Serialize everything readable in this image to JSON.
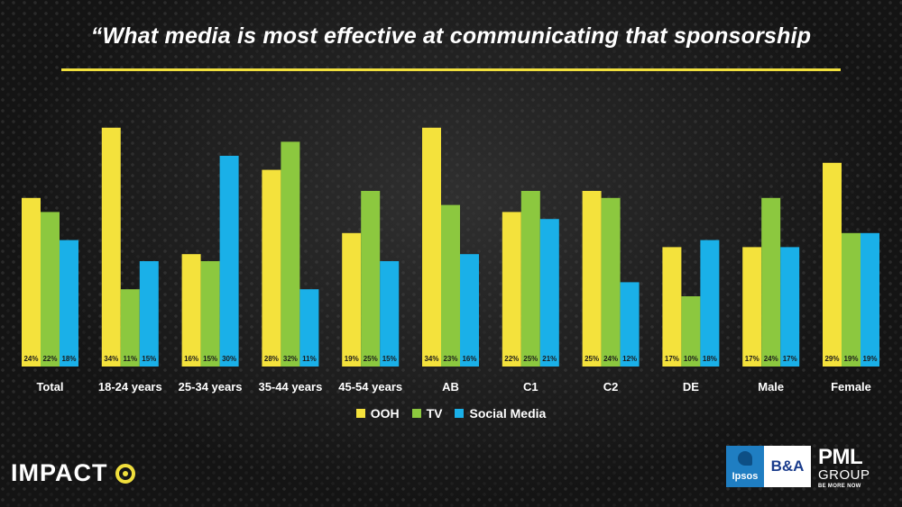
{
  "title": "“What media is most effective at communicating that sponsorship",
  "colors": {
    "ooh": "#f4e23c",
    "tv": "#8cc83f",
    "social": "#1ab0e8",
    "accent": "#f0df3c"
  },
  "chart_data": {
    "type": "bar",
    "categories": [
      "Total",
      "18-24 years",
      "25-34 years",
      "35-44 years",
      "45-54 years",
      "AB",
      "C1",
      "C2",
      "DE",
      "Male",
      "Female"
    ],
    "series": [
      {
        "name": "OOH",
        "values": [
          24,
          34,
          16,
          28,
          19,
          34,
          22,
          25,
          17,
          17,
          29
        ],
        "labels": [
          "24%",
          "34%",
          "16%",
          "28%",
          "19%",
          "34%",
          "22%",
          "25%",
          "17%",
          "17%",
          "29%"
        ]
      },
      {
        "name": "TV",
        "values": [
          22,
          11,
          15,
          32,
          25,
          23,
          25,
          24,
          10,
          24,
          19
        ],
        "labels": [
          "22%",
          "11%",
          "15%",
          "32%",
          "25%",
          "23%",
          "25%",
          "24%",
          "10%",
          "24%",
          "19%"
        ]
      },
      {
        "name": "Social Media",
        "values": [
          18,
          15,
          30,
          11,
          15,
          16,
          21,
          12,
          18,
          17,
          19
        ],
        "labels": [
          "18%",
          "15%",
          "30%",
          "11%",
          "15%",
          "16%",
          "21%",
          "12%",
          "18%",
          "17%",
          "19%"
        ]
      }
    ],
    "xlabel": "",
    "ylabel": "",
    "ylim": [
      0,
      35
    ],
    "legend": "bottom-center",
    "grid": false
  },
  "legend": {
    "items": [
      "OOH",
      "TV",
      "Social Media"
    ]
  },
  "branding": {
    "impact": "IMPACT",
    "ipsos": "Ipsos",
    "ba": "B&A",
    "pml_top": "PML",
    "pml_mid": "GROUP",
    "pml_tagline": "BE MORE NOW"
  }
}
